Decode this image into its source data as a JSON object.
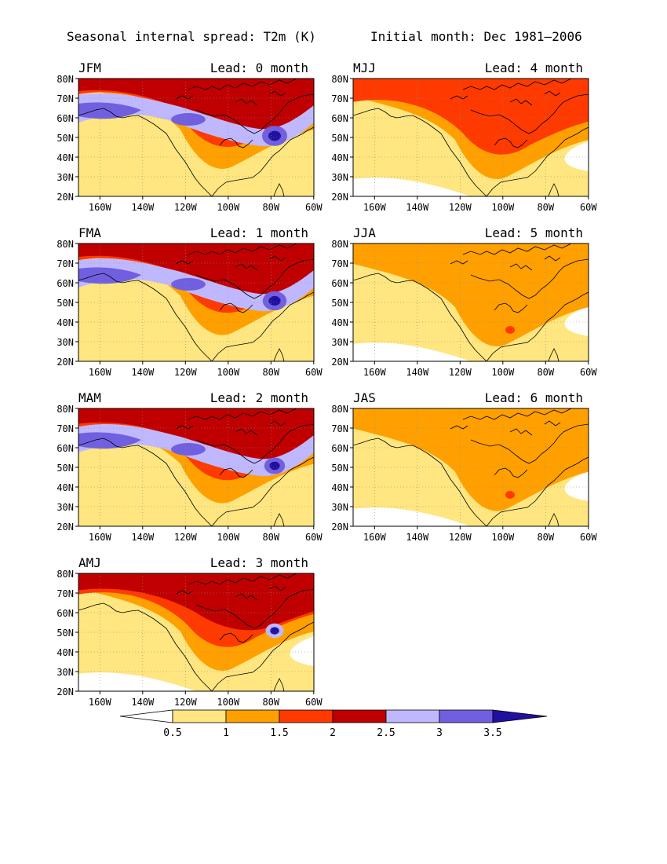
{
  "header": {
    "title": "Seasonal internal spread: T2m (K)",
    "initial": "Initial month: Dec 1981–2006"
  },
  "axes": {
    "lat_labels": [
      "80N",
      "70N",
      "60N",
      "50N",
      "40N",
      "30N",
      "20N"
    ],
    "lon_labels": [
      "160W",
      "140W",
      "120W",
      "100W",
      "80W",
      "60W"
    ],
    "lat_range": [
      20,
      80
    ],
    "lon_range": [
      -170,
      -60
    ],
    "grid": "dotted"
  },
  "panels": [
    {
      "season": "JFM",
      "lead": "Lead: 0 month",
      "intensity": 1.0
    },
    {
      "season": "MJJ",
      "lead": "Lead: 4 month",
      "intensity": 0.35
    },
    {
      "season": "FMA",
      "lead": "Lead: 1 month",
      "intensity": 0.92
    },
    {
      "season": "JJA",
      "lead": "Lead: 5 month",
      "intensity": 0.2
    },
    {
      "season": "MAM",
      "lead": "Lead: 2 month",
      "intensity": 0.72
    },
    {
      "season": "JAS",
      "lead": "Lead: 6 month",
      "intensity": 0.22
    },
    {
      "season": "AMJ",
      "lead": "Lead: 3 month",
      "intensity": 0.55
    }
  ],
  "colorbar": {
    "labels": [
      "0.5",
      "1",
      "1.5",
      "2",
      "2.5",
      "3",
      "3.5"
    ],
    "colors": [
      "#ffffff",
      "#ffe680",
      "#ffa000",
      "#ff3a00",
      "#c00000",
      "#c0b8ff",
      "#7060e0",
      "#2010a0"
    ]
  },
  "chart_data": {
    "type": "heatmap",
    "title": "Seasonal internal spread: T2m (K)",
    "subtitle": "Initial month: Dec 1981–2006",
    "variable": "T2m spread (K)",
    "levels": [
      0.5,
      1,
      1.5,
      2,
      2.5,
      3,
      3.5
    ],
    "x_range": [
      -170,
      -60
    ],
    "y_range": [
      20,
      80
    ],
    "x_ticks": [
      "160W",
      "140W",
      "120W",
      "100W",
      "80W",
      "60W"
    ],
    "y_ticks": [
      "20N",
      "30N",
      "40N",
      "50N",
      "60N",
      "70N",
      "80N"
    ],
    "series": [
      {
        "name": "JFM",
        "lead": "Lead: 0 month"
      },
      {
        "name": "FMA",
        "lead": "Lead: 1 month"
      },
      {
        "name": "MAM",
        "lead": "Lead: 2 month"
      },
      {
        "name": "AMJ",
        "lead": "Lead: 3 month"
      },
      {
        "name": "MJJ",
        "lead": "Lead: 4 month"
      },
      {
        "name": "JJA",
        "lead": "Lead: 5 month"
      },
      {
        "name": "JAS",
        "lead": "Lead: 6 month"
      }
    ]
  }
}
